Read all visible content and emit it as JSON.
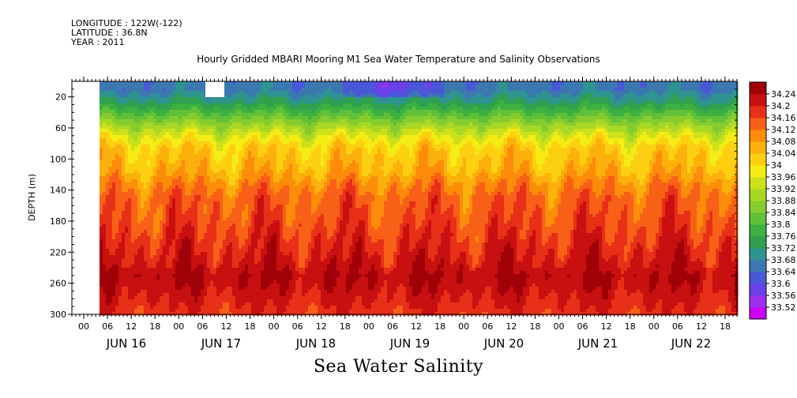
{
  "header": {
    "longitude": "LONGITUDE : 122W(-122)",
    "latitude": "LATITUDE : 36.8N",
    "year": "YEAR : 2011"
  },
  "chart_data": {
    "type": "heatmap",
    "title": "Hourly Gridded MBARI Mooring M1 Sea Water Temperature and Salinity Observations",
    "xlabel": "Sea Water Salinity",
    "ylabel": "DEPTH (m)",
    "ylim": [
      300,
      0
    ],
    "y_ticks": [
      20,
      60,
      100,
      140,
      180,
      220,
      260,
      300
    ],
    "x_hour_ticks": [
      "00",
      "06",
      "12",
      "18",
      "00",
      "06",
      "12",
      "18",
      "00",
      "06",
      "12",
      "18",
      "00",
      "06",
      "12",
      "18",
      "00",
      "06",
      "12",
      "18",
      "00",
      "06",
      "12",
      "18",
      "00",
      "06",
      "12",
      "18"
    ],
    "x_day_labels": [
      "JUN 16",
      "JUN 17",
      "JUN 18",
      "JUN 19",
      "JUN 20",
      "JUN 21",
      "JUN 22"
    ],
    "data_start": "JUN 16 04",
    "colorbar": {
      "levels": [
        33.52,
        33.56,
        33.6,
        33.64,
        33.68,
        33.72,
        33.76,
        33.8,
        33.84,
        33.88,
        33.92,
        33.96,
        34,
        34.04,
        34.08,
        34.12,
        34.16,
        34.2,
        34.24
      ],
      "colors": [
        "#cc00ff",
        "#a030f0",
        "#6a40e8",
        "#4a58d8",
        "#3c78b0",
        "#2e9490",
        "#2ea050",
        "#3cb040",
        "#60c038",
        "#86cc2e",
        "#a8d826",
        "#cce01c",
        "#f4ec14",
        "#fcd010",
        "#fcb00c",
        "#fc8c0a",
        "#f86018",
        "#e83018",
        "#c81010",
        "#a00008"
      ]
    },
    "depth_profile_mean": [
      {
        "depth": 10,
        "value": 33.66
      },
      {
        "depth": 25,
        "value": 33.72
      },
      {
        "depth": 40,
        "value": 33.8
      },
      {
        "depth": 55,
        "value": 33.88
      },
      {
        "depth": 70,
        "value": 33.96
      },
      {
        "depth": 85,
        "value": 34.02
      },
      {
        "depth": 100,
        "value": 34.04
      },
      {
        "depth": 115,
        "value": 34.06
      },
      {
        "depth": 130,
        "value": 34.1
      },
      {
        "depth": 150,
        "value": 34.14
      },
      {
        "depth": 170,
        "value": 34.15
      },
      {
        "depth": 190,
        "value": 34.17
      },
      {
        "depth": 210,
        "value": 34.19
      },
      {
        "depth": 230,
        "value": 34.21
      },
      {
        "depth": 250,
        "value": 34.24
      },
      {
        "depth": 270,
        "value": 34.22
      },
      {
        "depth": 285,
        "value": 34.2
      },
      {
        "depth": 300,
        "value": 34.18
      }
    ]
  }
}
